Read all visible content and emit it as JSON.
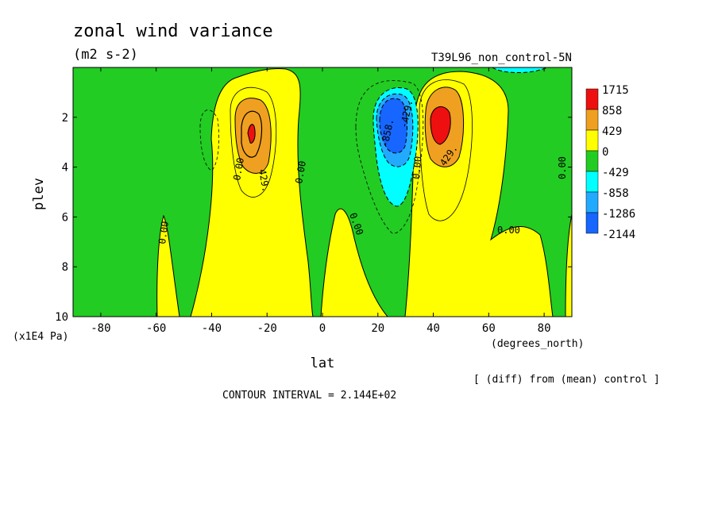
{
  "chart_data": {
    "type": "heatmap",
    "title": "zonal wind variance",
    "units": "(m2 s-2)",
    "run_label": "T39L96_non_control-5N",
    "xlabel": "lat",
    "x_units": "(degrees_north)",
    "ylabel": "plev",
    "y_units": "(x1E4 Pa)",
    "xlim": [
      -90,
      90
    ],
    "ylim": [
      10,
      0
    ],
    "x_ticks": [
      -80,
      -60,
      -40,
      -20,
      0,
      20,
      40,
      60,
      80
    ],
    "y_ticks": [
      2,
      4,
      6,
      8,
      10
    ],
    "note": "[ (diff) from (mean) control ]",
    "contour_interval_text": "CONTOUR INTERVAL = 2.144E+02",
    "legend": {
      "labels": [
        "1715",
        "858",
        "429",
        "0",
        "-429",
        "-858",
        "-1286",
        "-2144"
      ],
      "colors": [
        "#ee1010",
        "#f0a020",
        "#ffff00",
        "#22cc22",
        "#00ffff",
        "#22aaff",
        "#1666ff"
      ]
    },
    "contour_labels": [
      "0.00",
      "429.",
      "-858.",
      "-429."
    ],
    "features": [
      {
        "name": "positive maximum",
        "lat": -25,
        "plev": 2.5,
        "value": 858
      },
      {
        "name": "positive maximum",
        "lat": 41,
        "plev": 2.4,
        "value": 1715
      },
      {
        "name": "negative minimum",
        "lat": 25,
        "plev": 2.5,
        "value": -2144
      }
    ]
  }
}
